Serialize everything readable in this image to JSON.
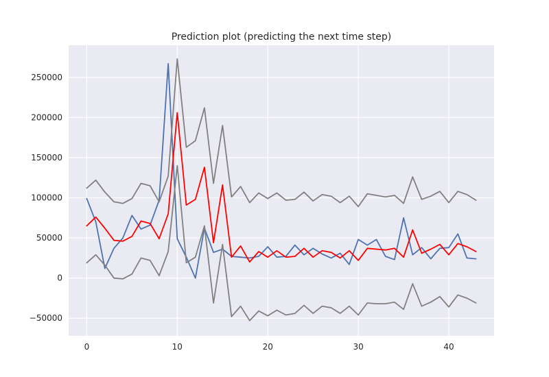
{
  "chart_data": {
    "type": "line",
    "title": "Prediction plot (predicting the next time step)",
    "xlabel": "",
    "ylabel": "",
    "xlim": [
      -2,
      45
    ],
    "ylim": [
      -72000,
      290000
    ],
    "x_ticks": [
      0,
      10,
      20,
      30,
      40
    ],
    "y_ticks": [
      -50000,
      0,
      50000,
      100000,
      150000,
      200000,
      250000
    ],
    "y_tick_labels": [
      "−50000",
      "0",
      "50000",
      "100000",
      "150000",
      "200000",
      "250000"
    ],
    "grid": true,
    "legend": "none",
    "x": [
      0,
      1,
      2,
      3,
      4,
      5,
      6,
      7,
      8,
      9,
      10,
      11,
      12,
      13,
      14,
      15,
      16,
      17,
      18,
      19,
      20,
      21,
      22,
      23,
      24,
      25,
      26,
      27,
      28,
      29,
      30,
      31,
      32,
      33,
      34,
      35,
      36,
      37,
      38,
      39,
      40,
      41,
      42,
      43
    ],
    "series": [
      {
        "color": "#4c72b0",
        "values": [
          99000,
          70000,
          12000,
          37000,
          50000,
          78000,
          61000,
          66000,
          97000,
          267000,
          49000,
          26000,
          0,
          62000,
          32000,
          36000,
          27000,
          26000,
          25000,
          27000,
          39000,
          26000,
          27000,
          41000,
          29000,
          37000,
          30000,
          25000,
          31000,
          17000,
          48000,
          41000,
          48000,
          27000,
          23000,
          75000,
          29000,
          38000,
          24000,
          37000,
          38000,
          55000,
          25000,
          24000
        ]
      },
      {
        "color": "#ff0000",
        "values": [
          65000,
          76000,
          62000,
          47000,
          46000,
          52000,
          71000,
          68000,
          49000,
          80000,
          206000,
          91000,
          98000,
          138000,
          44000,
          116000,
          26000,
          40000,
          20000,
          33000,
          26000,
          34000,
          26000,
          27000,
          37000,
          26000,
          34000,
          32000,
          25000,
          34000,
          22000,
          37000,
          36000,
          35000,
          37000,
          26000,
          60000,
          31000,
          36000,
          42000,
          29000,
          43000,
          39000,
          33000
        ]
      },
      {
        "color": "#808080",
        "values": [
          112000,
          122000,
          107000,
          95000,
          93000,
          99000,
          118000,
          115000,
          95000,
          127000,
          273000,
          163000,
          171000,
          212000,
          118000,
          190000,
          101000,
          114000,
          94000,
          106000,
          99000,
          106000,
          97000,
          98000,
          107000,
          96000,
          104000,
          102000,
          94000,
          102000,
          89000,
          105000,
          103000,
          101000,
          103000,
          93000,
          126000,
          98000,
          102000,
          108000,
          94000,
          108000,
          104000,
          97000
        ]
      },
      {
        "color": "#808080",
        "values": [
          19000,
          29000,
          16000,
          0,
          -1000,
          5000,
          25000,
          22000,
          3000,
          33000,
          140000,
          19000,
          26000,
          65000,
          -31000,
          42000,
          -48000,
          -35000,
          -53000,
          -41000,
          -47000,
          -40000,
          -46000,
          -44000,
          -34000,
          -44000,
          -35000,
          -37000,
          -44000,
          -35000,
          -46000,
          -31000,
          -32000,
          -32000,
          -30000,
          -39000,
          -7000,
          -35000,
          -30000,
          -23000,
          -36000,
          -21000,
          -25000,
          -31000
        ]
      }
    ]
  }
}
